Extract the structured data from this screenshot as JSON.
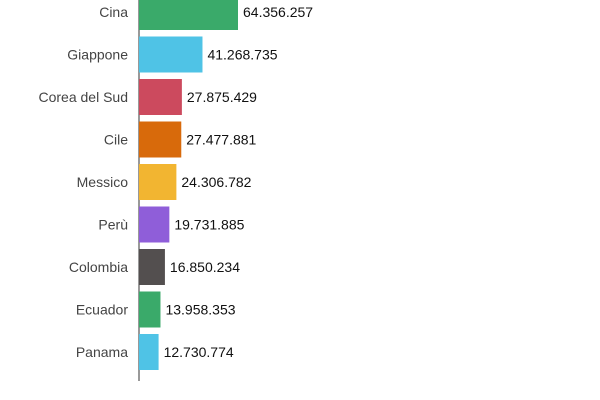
{
  "chart_data": {
    "type": "bar",
    "orientation": "horizontal",
    "title": "",
    "xlabel": "",
    "ylabel": "",
    "categories": [
      "Cina",
      "Giappone",
      "Corea del Sud",
      "Cile",
      "Messico",
      "Perù",
      "Colombia",
      "Ecuador",
      "Panama"
    ],
    "values": [
      64356257,
      41268735,
      27875429,
      27477881,
      24306782,
      19731885,
      16850234,
      13958353,
      12730774
    ],
    "value_labels": [
      "64.356.257",
      "41.268.735",
      "27.875.429",
      "27.477.881",
      "24.306.782",
      "19.731.885",
      "16.850.234",
      "13.958.353",
      "12.730.774"
    ],
    "bar_colors": [
      "#3aaa6a",
      "#4fc3e6",
      "#cc4a5e",
      "#d86a0b",
      "#f2b531",
      "#8f5ed9",
      "#534f4f",
      "#3aaa6a",
      "#4fc3e6"
    ],
    "xlim": [
      0,
      64356257
    ],
    "grid": false,
    "legend": "none"
  }
}
